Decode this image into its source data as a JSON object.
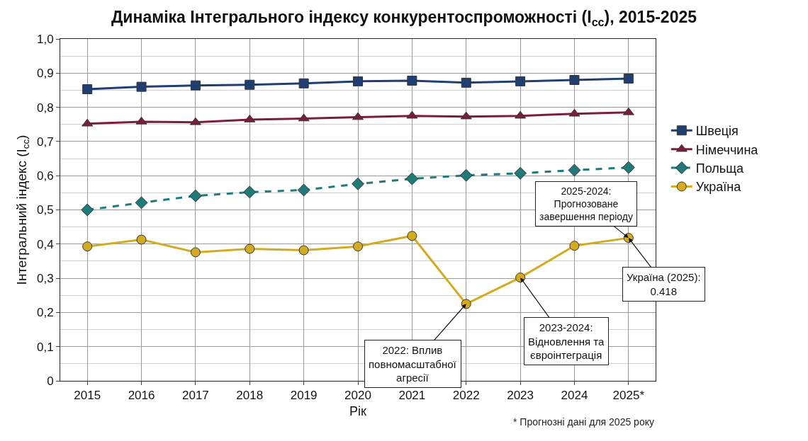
{
  "chart_data": {
    "type": "line",
    "title": "Динаміка Інтегрального індексу конкурентоспроможності (I$_{cc}$), 2015-2025",
    "xlabel": "Рік",
    "ylabel": "Інтегральний індекс (I$_{cc}$)",
    "categories": [
      "2015",
      "2016",
      "2017",
      "2018",
      "2019",
      "2020",
      "2021",
      "2022",
      "2023",
      "2024",
      "2025*"
    ],
    "series": [
      {
        "name": "Швеція",
        "color": "#1f3f73",
        "marker": "square",
        "line_style": "solid",
        "values": [
          0.853,
          0.86,
          0.864,
          0.866,
          0.87,
          0.876,
          0.878,
          0.872,
          0.876,
          0.88,
          0.884
        ]
      },
      {
        "name": "Німеччина",
        "color": "#7b1e3a",
        "marker": "triangle",
        "line_style": "solid",
        "values": [
          0.752,
          0.758,
          0.756,
          0.764,
          0.767,
          0.771,
          0.775,
          0.773,
          0.775,
          0.781,
          0.785
        ]
      },
      {
        "name": "Польща",
        "color": "#1f7a7a",
        "marker": "diamond",
        "line_style": "dashed",
        "values": [
          0.5,
          0.521,
          0.541,
          0.552,
          0.558,
          0.576,
          0.591,
          0.601,
          0.607,
          0.616,
          0.624
        ]
      },
      {
        "name": "Україна",
        "color": "#d4aa1e",
        "marker": "circle",
        "line_style": "solid",
        "values": [
          0.393,
          0.413,
          0.376,
          0.386,
          0.382,
          0.393,
          0.424,
          0.225,
          0.302,
          0.395,
          0.418
        ]
      }
    ],
    "ylim": [
      0,
      1
    ],
    "yticks": [
      0,
      {
        "value": 0.05,
        "label": null
      },
      {
        "value": 0.1,
        "label": "0,1"
      },
      {
        "value": 0.15,
        "label": null
      },
      {
        "value": 0.2,
        "label": "0,2"
      },
      {
        "value": 0.25,
        "label": null
      },
      {
        "value": 0.3,
        "label": "0,3"
      },
      {
        "value": 0.35,
        "label": null
      },
      {
        "value": 0.4,
        "label": "0,4"
      },
      {
        "value": 0.45,
        "label": null
      },
      {
        "value": 0.5,
        "label": "0,5"
      },
      {
        "value": 0.55,
        "label": null
      },
      {
        "value": 0.6,
        "label": "0,6"
      },
      {
        "value": 0.65,
        "label": null
      },
      {
        "value": 0.7,
        "label": "0,7"
      },
      {
        "value": 0.75,
        "label": null
      },
      {
        "value": 0.8,
        "label": "0,8"
      },
      {
        "value": 0.85,
        "label": null
      },
      {
        "value": 0.9,
        "label": "0,9"
      },
      {
        "value": 0.95,
        "label": null
      },
      {
        "value": 1,
        "label": "1,0"
      }
    ],
    "grid": true,
    "legend": "right",
    "annotations": [
      {
        "text": "2022: Вплив\nповномасштабної\nагресії",
        "x": "2022",
        "y": 0.225
      },
      {
        "text": "2023-2024:\nВідновлення та\nєвроінтеграція",
        "x": "2023",
        "y": 0.302
      },
      {
        "text": "Україна (2025):\n0.418",
        "x": "2025*",
        "y": 0.418
      },
      {
        "text": "2025-2024:\nПрогнозоване\nзавершення періоду",
        "x": "2025*",
        "y": 0.418
      },
      "* Прогнозні дані для 2025 року"
    ]
  }
}
